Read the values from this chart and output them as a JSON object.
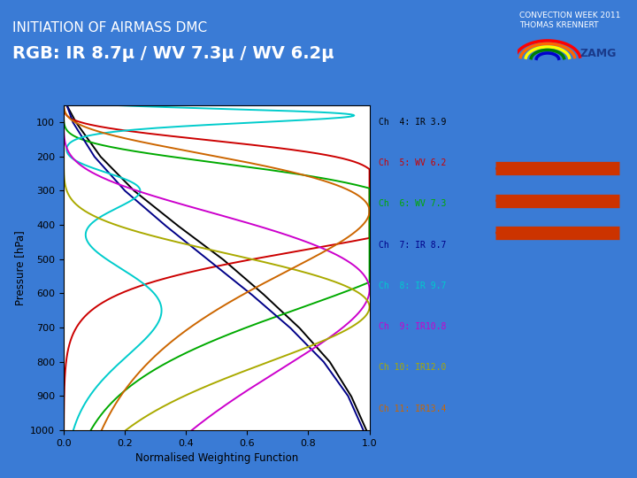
{
  "title_line1": "INITIATION OF AIRMASS DMC",
  "title_line2": "RGB: IR 8.7μ / WV 7.3μ / WV 6.2μ",
  "bg_color": "#3a7bd5",
  "header_text1": "CONVECTION WEEK 2011",
  "header_text2": "THOMAS KRENNERT",
  "plot_bg": "#ffffff",
  "xlabel": "Normalised Weighting Function",
  "ylabel": "Pressure [hPa]",
  "channels": [
    {
      "label": "Ch  4: IR 3.9",
      "color": "#000000"
    },
    {
      "label": "Ch  5: WV 6.2",
      "color": "#cc0000"
    },
    {
      "label": "Ch  6: WV 7.3",
      "color": "#00aa00"
    },
    {
      "label": "Ch  7: IR 8.7",
      "color": "#000088"
    },
    {
      "label": "Ch  8: IR 9.7",
      "color": "#00cccc"
    },
    {
      "label": "Ch  9: IR10.8",
      "color": "#cc00cc"
    },
    {
      "label": "Ch 10: IR12.0",
      "color": "#aaaa00"
    },
    {
      "label": "Ch 11: IR13.4",
      "color": "#cc6600"
    }
  ],
  "arrow_color": "#cc3300",
  "xlim": [
    0,
    1
  ],
  "ylim": [
    1000,
    50
  ]
}
